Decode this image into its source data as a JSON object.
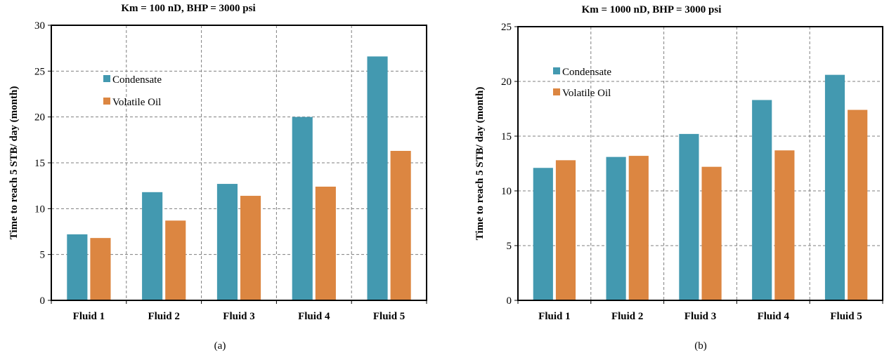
{
  "colors": {
    "condensate": "#4399b0",
    "volatile_oil": "#dc8641",
    "grid": "#7f7f7f",
    "frame": "#000000"
  },
  "chart_data": [
    {
      "type": "bar",
      "title": "Km = 100 nD, BHP = 3000 psi",
      "caption": "(a)",
      "xlabel": "",
      "ylabel": "Time to reach 5 STB/ day  (month)",
      "categories": [
        "Fluid 1",
        "Fluid 2",
        "Fluid 3",
        "Fluid 4",
        "Fluid 5"
      ],
      "series": [
        {
          "name": "Condensate",
          "color": "#4399b0",
          "values": [
            7.2,
            11.8,
            12.7,
            20.0,
            26.6
          ]
        },
        {
          "name": "Volatile Oil",
          "color": "#dc8641",
          "values": [
            6.8,
            8.7,
            11.4,
            12.4,
            16.3
          ]
        }
      ],
      "ylim": [
        0,
        30
      ],
      "yticks": [
        0,
        5,
        10,
        15,
        20,
        25,
        30
      ],
      "grid": true,
      "legend_position": "upper-left"
    },
    {
      "type": "bar",
      "title": "Km = 1000 nD, BHP = 3000 psi",
      "caption": "(b)",
      "xlabel": "",
      "ylabel": "Time to reach 5 STB/ day  (month)",
      "categories": [
        "Fluid 1",
        "Fluid 2",
        "Fluid 3",
        "Fluid 4",
        "Fluid 5"
      ],
      "series": [
        {
          "name": "Condensate",
          "color": "#4399b0",
          "values": [
            12.1,
            13.1,
            15.2,
            18.3,
            20.6
          ]
        },
        {
          "name": "Volatile Oil",
          "color": "#dc8641",
          "values": [
            12.8,
            13.2,
            12.2,
            13.7,
            17.4
          ]
        }
      ],
      "ylim": [
        0,
        25
      ],
      "yticks": [
        0,
        5,
        10,
        15,
        20,
        25
      ],
      "grid": true,
      "legend_position": "upper-left"
    }
  ]
}
